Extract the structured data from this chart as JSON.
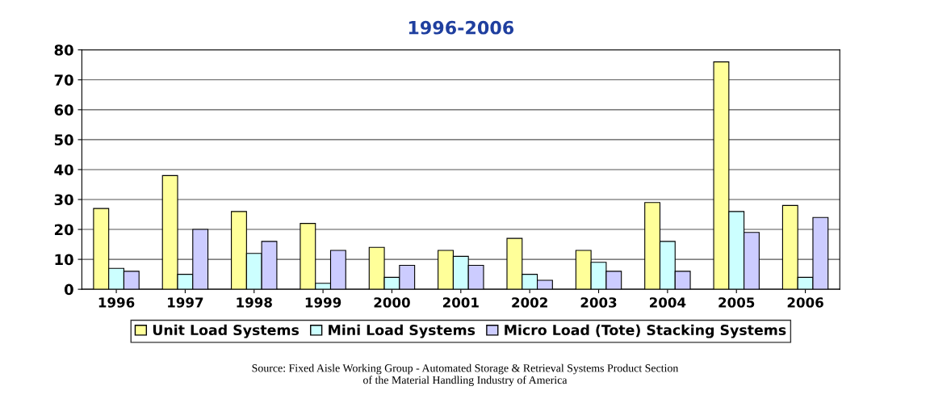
{
  "chart_data": {
    "type": "bar",
    "title": "1996-2006",
    "categories": [
      "1996",
      "1997",
      "1998",
      "1999",
      "2000",
      "2001",
      "2002",
      "2003",
      "2004",
      "2005",
      "2006"
    ],
    "series": [
      {
        "name": "Unit Load Systems",
        "color": "#ffff99",
        "values": [
          27,
          38,
          26,
          22,
          14,
          13,
          17,
          13,
          29,
          76,
          28
        ]
      },
      {
        "name": "Mini Load Systems",
        "color": "#ccffff",
        "values": [
          7,
          5,
          12,
          2,
          4,
          11,
          5,
          9,
          16,
          26,
          4
        ]
      },
      {
        "name": "Micro Load (Tote) Stacking Systems",
        "color": "#ccccff",
        "values": [
          6,
          20,
          16,
          13,
          8,
          8,
          3,
          6,
          6,
          19,
          24
        ]
      }
    ],
    "ylim": [
      0,
      80
    ],
    "yticks": [
      0,
      10,
      20,
      30,
      40,
      50,
      60,
      70,
      80
    ],
    "grid": "y",
    "legend": "bottom",
    "annotations": [
      "Source: Fixed Aisle Working Group - Automated Storage & Retrieval Systems Product Section\nof the Material Handling Industry of America"
    ]
  }
}
